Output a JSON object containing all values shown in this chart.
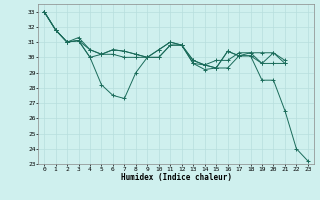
{
  "title": "",
  "xlabel": "Humidex (Indice chaleur)",
  "ylabel": "",
  "xlim": [
    -0.5,
    23.5
  ],
  "ylim": [
    23,
    33.5
  ],
  "yticks": [
    23,
    24,
    25,
    26,
    27,
    28,
    29,
    30,
    31,
    32,
    33
  ],
  "xticks": [
    0,
    1,
    2,
    3,
    4,
    5,
    6,
    7,
    8,
    9,
    10,
    11,
    12,
    13,
    14,
    15,
    16,
    17,
    18,
    19,
    20,
    21,
    22,
    23
  ],
  "bg_color": "#cff0ee",
  "grid_color": "#b8dedd",
  "line_color": "#1a6b5a",
  "series": [
    [
      33.0,
      31.8,
      31.0,
      31.1,
      30.0,
      28.2,
      27.5,
      27.3,
      29.0,
      30.0,
      30.0,
      30.8,
      30.8,
      29.6,
      29.2,
      29.3,
      30.4,
      30.1,
      30.1,
      28.5,
      28.5,
      26.5,
      24.0,
      23.2
    ],
    [
      33.0,
      31.8,
      31.0,
      31.1,
      30.0,
      30.2,
      30.2,
      30.0,
      30.0,
      30.0,
      30.0,
      30.8,
      30.8,
      29.6,
      29.5,
      29.3,
      30.4,
      30.1,
      30.1,
      29.6,
      29.6,
      29.6,
      null,
      null
    ],
    [
      33.0,
      31.8,
      31.0,
      31.1,
      30.5,
      30.2,
      30.5,
      30.4,
      30.2,
      30.0,
      30.5,
      31.0,
      30.8,
      29.8,
      29.5,
      29.3,
      29.3,
      30.1,
      30.3,
      29.6,
      30.3,
      29.6,
      null,
      null
    ],
    [
      33.0,
      31.8,
      31.0,
      31.3,
      30.5,
      30.2,
      30.5,
      30.4,
      30.2,
      30.0,
      30.5,
      31.0,
      30.8,
      29.8,
      29.5,
      29.8,
      29.8,
      30.3,
      30.3,
      30.3,
      30.3,
      29.8,
      null,
      null
    ]
  ]
}
